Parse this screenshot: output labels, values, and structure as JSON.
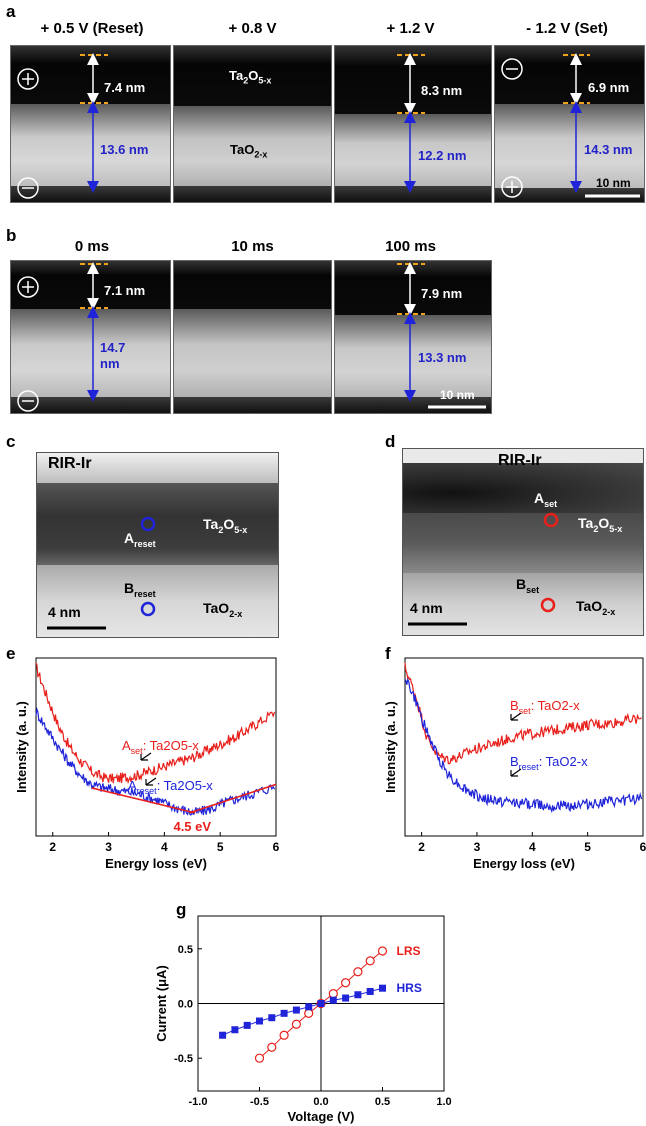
{
  "panel_letters": {
    "a": "a",
    "b": "b",
    "c": "c",
    "d": "d",
    "e": "e",
    "f": "f",
    "g": "g"
  },
  "panel_a": {
    "headers": [
      "+ 0.5 V (Reset)",
      "+ 0.8 V",
      "+ 1.2 V",
      "- 1.2 V (Set)"
    ],
    "top_thickness": [
      "7.4 nm",
      "8.3 nm",
      "6.9 nm"
    ],
    "bottom_thickness": [
      "13.6 nm",
      "12.2 nm",
      "14.3 nm"
    ],
    "layer_top": "Ta2O5-x",
    "layer_bottom": "TaO2-x",
    "scalebar": "10 nm",
    "plus": "+",
    "minus": "−"
  },
  "panel_b": {
    "headers": [
      "0 ms",
      "10 ms",
      "100 ms"
    ],
    "top_thickness": [
      "7.1 nm",
      "7.9 nm"
    ],
    "bottom_thickness_line1": "14.7",
    "bottom_thickness_line2": "nm",
    "bottom_thickness_2": "13.3 nm",
    "scalebar": "10 nm"
  },
  "panel_c": {
    "title": "RIR-Ir",
    "point_a": "A",
    "point_a_sub": "reset",
    "point_b": "B",
    "point_b_sub": "reset",
    "layer_top": "Ta2O5-x",
    "layer_bottom": "TaO2-x",
    "scalebar": "4 nm"
  },
  "panel_d": {
    "title": "RIR-Ir",
    "point_a": "A",
    "point_a_sub": "set",
    "point_b": "B",
    "point_b_sub": "set",
    "layer_top": "Ta2O5-x",
    "layer_bottom": "TaO2-x",
    "scalebar": "4 nm"
  },
  "colors": {
    "red": "#e8201c",
    "blue": "#1f24d8",
    "orange": "#f0a21a",
    "dark_blue_label": "#2323c8"
  },
  "chart_data": [
    {
      "type": "line",
      "panel": "e",
      "xlabel": "Energy loss (eV)",
      "ylabel": "Intensity (a. u.)",
      "xlim": [
        1.7,
        6.0
      ],
      "xticks": [
        "2",
        "3",
        "4",
        "5",
        "6"
      ],
      "series": [
        {
          "label_main": "A",
          "label_sub": "set",
          "label_rest": ": Ta2O5-x",
          "color": "#e8201c",
          "x": [
            1.7,
            1.9,
            2.1,
            2.3,
            2.5,
            2.7,
            2.9,
            3.1,
            3.3,
            3.5,
            3.7,
            3.9,
            4.1,
            4.3,
            4.5,
            4.7,
            4.9,
            5.1,
            5.3,
            5.5,
            5.7,
            6.0
          ],
          "y": [
            0.95,
            0.78,
            0.62,
            0.5,
            0.42,
            0.36,
            0.33,
            0.32,
            0.33,
            0.34,
            0.36,
            0.38,
            0.4,
            0.42,
            0.44,
            0.47,
            0.5,
            0.53,
            0.56,
            0.6,
            0.64,
            0.7
          ]
        },
        {
          "label_main": "A",
          "label_sub": "reset",
          "label_rest": ": Ta2O5-x",
          "color": "#1f24d8",
          "x": [
            1.7,
            1.9,
            2.1,
            2.3,
            2.5,
            2.7,
            2.9,
            3.1,
            3.3,
            3.5,
            3.7,
            3.9,
            4.1,
            4.3,
            4.5,
            4.7,
            4.9,
            5.1,
            5.3,
            5.5,
            5.7,
            6.0
          ],
          "y": [
            0.7,
            0.6,
            0.5,
            0.41,
            0.34,
            0.29,
            0.27,
            0.26,
            0.25,
            0.24,
            0.22,
            0.2,
            0.17,
            0.15,
            0.13,
            0.14,
            0.16,
            0.19,
            0.21,
            0.23,
            0.25,
            0.28
          ]
        }
      ],
      "annotation": "4.5 eV"
    },
    {
      "type": "line",
      "panel": "f",
      "xlabel": "Energy loss (eV)",
      "ylabel": "Intensity (a. u.)",
      "xlim": [
        1.7,
        6.0
      ],
      "xticks": [
        "2",
        "3",
        "4",
        "5",
        "6"
      ],
      "series": [
        {
          "label_main": "B",
          "label_sub": "set",
          "label_rest": ": TaO2-x",
          "color": "#e8201c",
          "x": [
            1.7,
            1.9,
            2.1,
            2.3,
            2.5,
            2.7,
            2.9,
            3.1,
            3.3,
            3.5,
            3.7,
            3.9,
            4.1,
            4.3,
            4.5,
            4.7,
            4.9,
            5.1,
            5.3,
            5.5,
            5.7,
            6.0
          ],
          "y": [
            0.95,
            0.78,
            0.55,
            0.45,
            0.43,
            0.45,
            0.48,
            0.5,
            0.52,
            0.54,
            0.56,
            0.57,
            0.58,
            0.59,
            0.6,
            0.61,
            0.62,
            0.63,
            0.63,
            0.64,
            0.65,
            0.66
          ]
        },
        {
          "label_main": "B",
          "label_sub": "reset",
          "label_rest": ": TaO2-x",
          "color": "#1f24d8",
          "x": [
            1.7,
            1.9,
            2.1,
            2.3,
            2.5,
            2.7,
            2.9,
            3.1,
            3.3,
            3.5,
            3.7,
            3.9,
            4.1,
            4.3,
            4.5,
            4.7,
            4.9,
            5.1,
            5.3,
            5.5,
            5.7,
            6.0
          ],
          "y": [
            0.9,
            0.75,
            0.58,
            0.44,
            0.34,
            0.28,
            0.24,
            0.21,
            0.2,
            0.19,
            0.19,
            0.18,
            0.18,
            0.17,
            0.17,
            0.17,
            0.18,
            0.18,
            0.19,
            0.19,
            0.2,
            0.22
          ]
        }
      ]
    },
    {
      "type": "line",
      "panel": "g",
      "xlabel": "Voltage (V)",
      "ylabel": "Current (μA)",
      "xlim": [
        -1.0,
        1.0
      ],
      "ylim": [
        -0.8,
        0.8
      ],
      "xticks": [
        "-1.0",
        "-0.5",
        "0.0",
        "0.5",
        "1.0"
      ],
      "yticks": [
        "-0.5",
        "0.0",
        "0.5"
      ],
      "series": [
        {
          "name": "LRS",
          "color": "#e8201c",
          "marker": "open-circle",
          "x": [
            -0.5,
            -0.4,
            -0.3,
            -0.2,
            -0.1,
            0.0,
            0.1,
            0.2,
            0.3,
            0.4,
            0.5
          ],
          "y": [
            -0.5,
            -0.4,
            -0.29,
            -0.19,
            -0.09,
            0.0,
            0.09,
            0.19,
            0.29,
            0.39,
            0.48
          ]
        },
        {
          "name": "HRS",
          "color": "#1f24d8",
          "marker": "filled-square",
          "x": [
            -0.8,
            -0.7,
            -0.6,
            -0.5,
            -0.4,
            -0.3,
            -0.2,
            -0.1,
            0.0,
            0.1,
            0.2,
            0.3,
            0.4,
            0.5
          ],
          "y": [
            -0.29,
            -0.24,
            -0.2,
            -0.16,
            -0.13,
            -0.09,
            -0.06,
            -0.03,
            0.0,
            0.03,
            0.05,
            0.08,
            0.11,
            0.14
          ]
        }
      ]
    }
  ]
}
